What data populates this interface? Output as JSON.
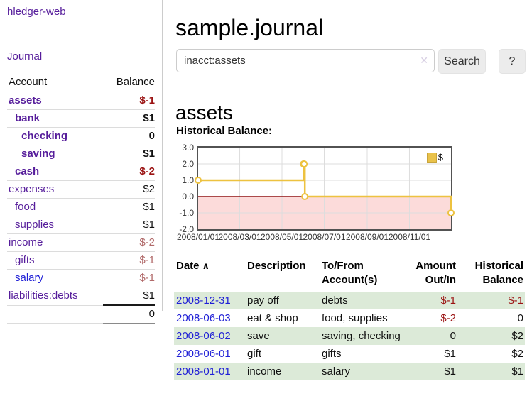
{
  "app": {
    "brand": "hledger-web"
  },
  "sidebar": {
    "journal_link": "Journal",
    "accounts": {
      "header": {
        "account": "Account",
        "balance": "Balance"
      },
      "rows": [
        {
          "name": "assets",
          "balance": "$-1",
          "indent": 0,
          "bold": true,
          "value_class": "val-neg-strong",
          "link_class": ""
        },
        {
          "name": "bank",
          "balance": "$1",
          "indent": 1,
          "bold": true,
          "value_class": "val-pos",
          "link_class": ""
        },
        {
          "name": "checking",
          "balance": "0",
          "indent": 2,
          "bold": true,
          "value_class": "val-pos",
          "link_class": ""
        },
        {
          "name": "saving",
          "balance": "$1",
          "indent": 2,
          "bold": true,
          "value_class": "val-pos",
          "link_class": ""
        },
        {
          "name": "cash",
          "balance": "$-2",
          "indent": 1,
          "bold": true,
          "value_class": "val-neg-strong",
          "link_class": ""
        },
        {
          "name": "expenses",
          "balance": "$2",
          "indent": 0,
          "bold": false,
          "value_class": "val-pos",
          "link_class": ""
        },
        {
          "name": "food",
          "balance": "$1",
          "indent": 1,
          "bold": false,
          "value_class": "val-pos",
          "link_class": ""
        },
        {
          "name": "supplies",
          "balance": "$1",
          "indent": 1,
          "bold": false,
          "value_class": "val-pos",
          "link_class": ""
        },
        {
          "name": "income",
          "balance": "$-2",
          "indent": 0,
          "bold": false,
          "value_class": "val-neg-soft",
          "link_class": ""
        },
        {
          "name": "gifts",
          "balance": "$-1",
          "indent": 1,
          "bold": false,
          "value_class": "val-neg-soft",
          "link_class": ""
        },
        {
          "name": "salary",
          "balance": "$-1",
          "indent": 1,
          "bold": false,
          "value_class": "val-neg-soft",
          "link_class": "blue"
        },
        {
          "name": "liabilities:debts",
          "balance": "$1",
          "indent": 0,
          "bold": false,
          "value_class": "val-pos",
          "link_class": ""
        }
      ],
      "total": "0"
    }
  },
  "main": {
    "title": "sample.journal",
    "search": {
      "value": "inacct:assets",
      "clear_icon": "✕",
      "search_button": "Search",
      "help_button": "?"
    },
    "account_heading": "assets",
    "section_label": "Historical Balance:"
  },
  "chart_data": {
    "type": "line",
    "title": "Historical Balance",
    "steps": true,
    "series": [
      {
        "name": "$",
        "color": "#edc240",
        "points": [
          {
            "date": "2008-01-01",
            "value": 1
          },
          {
            "date": "2008-06-01",
            "value": 2
          },
          {
            "date": "2008-06-02",
            "value": 2
          },
          {
            "date": "2008-06-03",
            "value": 0
          },
          {
            "date": "2008-12-31",
            "value": -1
          }
        ]
      }
    ],
    "xlim": [
      "2008-01-01",
      "2008-12-31"
    ],
    "ylim": [
      -2,
      3
    ],
    "x_ticks": [
      "2008/01/01",
      "2008/03/01",
      "2008/05/01",
      "2008/07/01",
      "2008/09/01",
      "2008/11/01"
    ],
    "y_ticks": [
      3.0,
      2.0,
      1.0,
      0.0,
      -1.0,
      -2.0
    ],
    "legend": {
      "label": "$",
      "position": "top-right"
    },
    "grid": true,
    "negative_region_color": "#fcdbda",
    "zero_line_color": "#8f0e0e",
    "grid_color": "#dddddd"
  },
  "register": {
    "headers": {
      "date": "Date",
      "sort_icon": "∧",
      "description": "Description",
      "accounts": "To/From Account(s)",
      "amount": "Amount Out/In",
      "balance": "Historical Balance"
    },
    "rows": [
      {
        "date": "2008-12-31",
        "description": "pay off",
        "accounts": "debts",
        "amount": "$-1",
        "amount_negative": true,
        "balance": "$-1",
        "balance_negative": true
      },
      {
        "date": "2008-06-03",
        "description": "eat & shop",
        "accounts": "food, supplies",
        "amount": "$-2",
        "amount_negative": true,
        "balance": "0",
        "balance_negative": false
      },
      {
        "date": "2008-06-02",
        "description": "save",
        "accounts": "saving, checking",
        "amount": "0",
        "amount_negative": false,
        "balance": "$2",
        "balance_negative": false
      },
      {
        "date": "2008-06-01",
        "description": "gift",
        "accounts": "gifts",
        "amount": "$1",
        "amount_negative": false,
        "balance": "$2",
        "balance_negative": false
      },
      {
        "date": "2008-01-01",
        "description": "income",
        "accounts": "salary",
        "amount": "$1",
        "amount_negative": false,
        "balance": "$1",
        "balance_negative": false
      }
    ]
  },
  "colors": {
    "accent_purple": "#561d9b",
    "link_blue": "#1f1fd6",
    "negative_strong": "#9b1313",
    "negative_soft": "#b16a6a",
    "row_green": "#dcead8",
    "chart_line": "#edc240"
  }
}
